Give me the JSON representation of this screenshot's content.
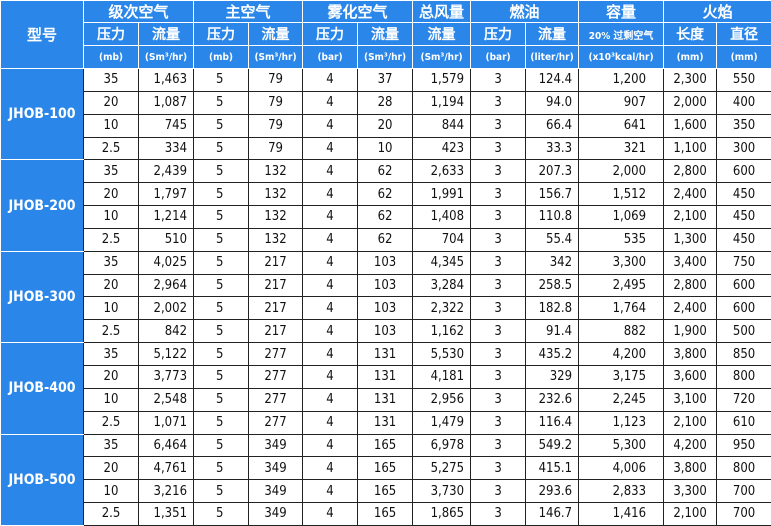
{
  "header": {
    "model": "型号",
    "groups": [
      "级次空气",
      "主空气",
      "雾化空气",
      "总风量",
      "燃油",
      "容量",
      "火焰"
    ],
    "subheaders": [
      "压力",
      "流量",
      "压力",
      "流量",
      "压力",
      "流量",
      "流量",
      "压力",
      "流量",
      "20% 过剩空气",
      "长度",
      "直径"
    ],
    "units": [
      "(mb)",
      "(Sm³/hr)",
      "(mb)",
      "(Sm³/hr)",
      "(bar)",
      "(Sm³/hr)",
      "(Sm³/hr)",
      "(bar)",
      "(liter/hr)",
      "(x10³kcal/hr)",
      "(mm)",
      "(mm)"
    ]
  },
  "colors": {
    "header_bg": "#2a86e8",
    "header_text": "#ffffff"
  },
  "models": [
    {
      "name": "JHOB-100",
      "rows": [
        [
          "35",
          "1,463",
          "5",
          "79",
          "4",
          "37",
          "1,579",
          "3",
          "124.4",
          "1,200",
          "2,300",
          "550"
        ],
        [
          "20",
          "1,087",
          "5",
          "79",
          "4",
          "28",
          "1,194",
          "3",
          "94.0",
          "907",
          "2,000",
          "400"
        ],
        [
          "10",
          "745",
          "5",
          "79",
          "4",
          "20",
          "844",
          "3",
          "66.4",
          "641",
          "1,600",
          "350"
        ],
        [
          "2.5",
          "334",
          "5",
          "79",
          "4",
          "10",
          "423",
          "3",
          "33.3",
          "321",
          "1,100",
          "300"
        ]
      ]
    },
    {
      "name": "JHOB-200",
      "rows": [
        [
          "35",
          "2,439",
          "5",
          "132",
          "4",
          "62",
          "2,633",
          "3",
          "207.3",
          "2,000",
          "2,800",
          "600"
        ],
        [
          "20",
          "1,797",
          "5",
          "132",
          "4",
          "62",
          "1,991",
          "3",
          "156.7",
          "1,512",
          "2,400",
          "450"
        ],
        [
          "10",
          "1,214",
          "5",
          "132",
          "4",
          "62",
          "1,408",
          "3",
          "110.8",
          "1,069",
          "2,100",
          "450"
        ],
        [
          "2.5",
          "510",
          "5",
          "132",
          "4",
          "62",
          "704",
          "3",
          "55.4",
          "535",
          "1,300",
          "450"
        ]
      ]
    },
    {
      "name": "JHOB-300",
      "rows": [
        [
          "35",
          "4,025",
          "5",
          "217",
          "4",
          "103",
          "4,345",
          "3",
          "342",
          "3,300",
          "3,400",
          "750"
        ],
        [
          "20",
          "2,964",
          "5",
          "217",
          "4",
          "103",
          "3,284",
          "3",
          "258.5",
          "2,495",
          "2,800",
          "600"
        ],
        [
          "10",
          "2,002",
          "5",
          "217",
          "4",
          "103",
          "2,322",
          "3",
          "182.8",
          "1,764",
          "2,400",
          "600"
        ],
        [
          "2.5",
          "842",
          "5",
          "217",
          "4",
          "103",
          "1,162",
          "3",
          "91.4",
          "882",
          "1,900",
          "500"
        ]
      ]
    },
    {
      "name": "JHOB-400",
      "rows": [
        [
          "35",
          "5,122",
          "5",
          "277",
          "4",
          "131",
          "5,530",
          "3",
          "435.2",
          "4,200",
          "3,800",
          "850"
        ],
        [
          "20",
          "3,773",
          "5",
          "277",
          "4",
          "131",
          "4,181",
          "3",
          "329",
          "3,175",
          "3,600",
          "800"
        ],
        [
          "10",
          "2,548",
          "5",
          "277",
          "4",
          "131",
          "2,956",
          "3",
          "232.6",
          "2,245",
          "3,100",
          "720"
        ],
        [
          "2.5",
          "1,071",
          "5",
          "277",
          "4",
          "131",
          "1,479",
          "3",
          "116.4",
          "1,123",
          "2,100",
          "610"
        ]
      ]
    },
    {
      "name": "JHOB-500",
      "rows": [
        [
          "35",
          "6,464",
          "5",
          "349",
          "4",
          "165",
          "6,978",
          "3",
          "549.2",
          "5,300",
          "4,200",
          "950"
        ],
        [
          "20",
          "4,761",
          "5",
          "349",
          "4",
          "165",
          "5,275",
          "3",
          "415.1",
          "4,006",
          "3,800",
          "800"
        ],
        [
          "10",
          "3,216",
          "5",
          "349",
          "4",
          "165",
          "3,730",
          "3",
          "293.6",
          "2,833",
          "3,300",
          "700"
        ],
        [
          "2.5",
          "1,351",
          "5",
          "349",
          "4",
          "165",
          "1,865",
          "3",
          "146.7",
          "1,416",
          "2,100",
          "700"
        ]
      ]
    }
  ]
}
